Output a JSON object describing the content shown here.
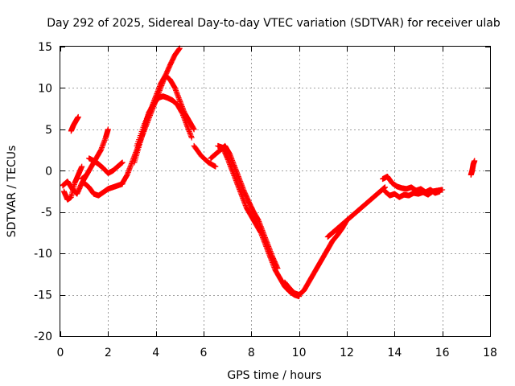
{
  "chart_data": {
    "type": "scatter",
    "title": "Day 292 of 2025, Sidereal Day-to-day VTEC variation (SDTVAR) for receiver ulab",
    "xlabel": "GPS time / hours",
    "ylabel": "SDTVAR / TECUs",
    "xlim": [
      0,
      18
    ],
    "ylim": [
      -20,
      15
    ],
    "xticks": [
      "0",
      "2",
      "4",
      "6",
      "8",
      "10",
      "12",
      "14",
      "16",
      "18"
    ],
    "yticks": [
      "-20",
      "-15",
      "-10",
      "-5",
      "0",
      "5",
      "10",
      "15"
    ],
    "grid": true,
    "marker": "+",
    "color": "#ff0000",
    "series": [
      {
        "name": "s1",
        "x": [
          0.15,
          0.3,
          0.45,
          0.6,
          0.75,
          0.9
        ],
        "y": [
          -2.5,
          -3.5,
          -3.2,
          -1.5,
          -0.5,
          0.5
        ]
      },
      {
        "name": "s2",
        "x": [
          0.45,
          0.55,
          0.65,
          0.75
        ],
        "y": [
          4.8,
          5.5,
          6.0,
          6.5
        ]
      },
      {
        "name": "s3",
        "x": [
          0.1,
          0.3,
          0.5,
          0.7,
          0.9,
          1.1
        ],
        "y": [
          -1.8,
          -1.3,
          -2.2,
          -2.8,
          -1.5,
          -0.5
        ]
      },
      {
        "name": "s4",
        "x": [
          0.9,
          1.1,
          1.3,
          1.5,
          1.7,
          1.9,
          2.0
        ],
        "y": [
          -1.0,
          -0.5,
          0.5,
          1.5,
          2.5,
          4.0,
          5.0
        ]
      },
      {
        "name": "s5",
        "x": [
          1.0,
          1.2,
          1.4,
          1.6,
          1.8,
          2.0,
          2.2,
          2.4,
          2.6
        ],
        "y": [
          -1.5,
          -2.0,
          -2.8,
          -3.0,
          -2.6,
          -2.2,
          -2.0,
          -1.8,
          -1.6
        ]
      },
      {
        "name": "s6",
        "x": [
          1.2,
          1.4,
          1.6,
          1.8,
          2.0,
          2.2,
          2.4,
          2.6
        ],
        "y": [
          1.5,
          1.2,
          0.8,
          0.3,
          -0.3,
          0.0,
          0.5,
          1.0
        ]
      },
      {
        "name": "s7",
        "x": [
          2.6,
          2.8,
          3.0,
          3.2,
          3.4,
          3.6,
          3.8,
          4.0,
          4.2,
          4.4,
          4.6,
          4.8,
          5.0
        ],
        "y": [
          -1.5,
          -0.5,
          1.0,
          2.5,
          4.0,
          5.5,
          7.0,
          8.5,
          10.0,
          11.5,
          12.8,
          14.0,
          14.8
        ]
      },
      {
        "name": "s8",
        "x": [
          3.1,
          3.3,
          3.5,
          3.7,
          3.9,
          4.1,
          4.3,
          4.5,
          4.7,
          4.9,
          5.1,
          5.3,
          5.5
        ],
        "y": [
          1.0,
          3.0,
          5.0,
          7.0,
          8.0,
          8.8,
          9.0,
          8.8,
          8.5,
          8.0,
          7.0,
          5.5,
          4.0
        ]
      },
      {
        "name": "s9",
        "x": [
          3.2,
          3.5,
          3.8,
          4.0,
          4.2,
          4.4,
          4.6,
          4.8,
          5.0,
          5.2,
          5.4,
          5.6
        ],
        "y": [
          3.0,
          5.5,
          7.5,
          9.0,
          10.5,
          11.5,
          11.0,
          10.0,
          8.5,
          7.0,
          6.0,
          5.0
        ]
      },
      {
        "name": "s10",
        "x": [
          6.3,
          6.5,
          6.7,
          6.9,
          7.1,
          7.3,
          7.5,
          7.7,
          7.9,
          8.1,
          8.3,
          8.5,
          8.7,
          8.9,
          9.1
        ],
        "y": [
          1.5,
          2.0,
          2.5,
          3.0,
          2.0,
          0.5,
          -1.0,
          -2.5,
          -3.8,
          -5.0,
          -6.0,
          -7.5,
          -9.0,
          -10.5,
          -11.8
        ]
      },
      {
        "name": "s11",
        "x": [
          6.6,
          6.8,
          7.0,
          7.2,
          7.4,
          7.6,
          7.8,
          8.0,
          8.2,
          8.4,
          8.6,
          8.8,
          9.0,
          9.2,
          9.4,
          9.6,
          9.8,
          10.0
        ],
        "y": [
          3.0,
          2.8,
          1.5,
          0.0,
          -1.5,
          -3.0,
          -4.5,
          -5.5,
          -6.5,
          -7.5,
          -9.0,
          -10.5,
          -12.0,
          -13.0,
          -14.0,
          -14.6,
          -15.0,
          -15.2
        ]
      },
      {
        "name": "s12",
        "x": [
          9.4,
          9.6,
          9.8,
          10.0,
          10.2,
          10.4,
          10.6,
          10.8,
          11.0,
          11.2,
          11.4,
          11.6,
          11.8,
          12.0
        ],
        "y": [
          -13.5,
          -14.2,
          -14.8,
          -15.0,
          -14.5,
          -13.5,
          -12.5,
          -11.5,
          -10.5,
          -9.5,
          -8.5,
          -7.8,
          -7.0,
          -6.0
        ]
      },
      {
        "name": "s13",
        "x": [
          11.2,
          11.4,
          11.6,
          11.8,
          12.0,
          12.2,
          12.4,
          12.6,
          12.8,
          13.0,
          13.2,
          13.4,
          13.6
        ],
        "y": [
          -8.0,
          -7.5,
          -7.0,
          -6.5,
          -6.0,
          -5.5,
          -5.0,
          -4.5,
          -4.0,
          -3.5,
          -3.0,
          -2.5,
          -2.0
        ]
      },
      {
        "name": "s14",
        "x": [
          13.6,
          13.8,
          14.0,
          14.2,
          14.4,
          14.6,
          14.8,
          15.0,
          15.2,
          15.4,
          15.6,
          15.8,
          16.0
        ],
        "y": [
          -2.5,
          -3.0,
          -2.8,
          -3.2,
          -2.9,
          -3.0,
          -2.7,
          -2.8,
          -2.6,
          -2.9,
          -2.5,
          -2.4,
          -2.3
        ]
      },
      {
        "name": "s15",
        "x": [
          13.5,
          13.7,
          13.9,
          14.1,
          14.3,
          14.5,
          14.7,
          14.9,
          15.1,
          15.3,
          15.5,
          15.7,
          15.9
        ],
        "y": [
          -1.0,
          -0.7,
          -1.5,
          -1.9,
          -2.1,
          -2.2,
          -2.0,
          -2.4,
          -2.2,
          -2.6,
          -2.3,
          -2.7,
          -2.5
        ]
      },
      {
        "name": "s16",
        "x": [
          17.2,
          17.25,
          17.3,
          17.35
        ],
        "y": [
          -0.5,
          0.0,
          0.8,
          1.2
        ]
      },
      {
        "name": "s17",
        "x": [
          5.6,
          5.9,
          6.2,
          6.5
        ],
        "y": [
          3.0,
          1.8,
          1.0,
          0.5
        ]
      }
    ]
  }
}
